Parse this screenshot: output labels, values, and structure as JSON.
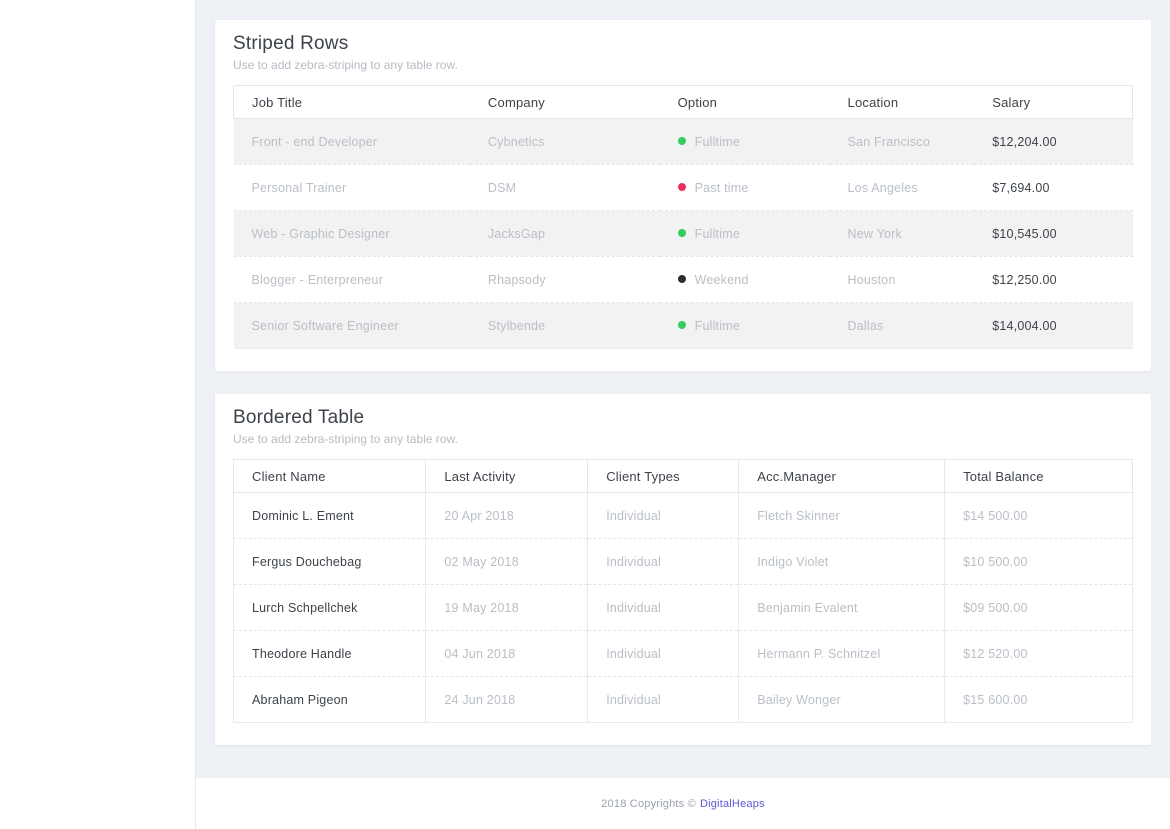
{
  "page": {
    "background_color": "#eef1f5",
    "card_color": "#ffffff"
  },
  "striped_section": {
    "title": "Striped Rows",
    "subtitle": "Use to add zebra-striping to any table row.",
    "columns": [
      "Job Title",
      "Company",
      "Option",
      "Location",
      "Salary"
    ],
    "rows": [
      {
        "job_title": "Front - end Developer",
        "company": "Cybnetics",
        "option": "Fulltime",
        "option_color": "#35cb5f",
        "location": "San Francisco",
        "salary": "$12,204.00"
      },
      {
        "job_title": "Personal Trainer",
        "company": "DSM",
        "option": "Past time",
        "option_color": "#ed2f5d",
        "location": "Los Angeles",
        "salary": "$7,694.00"
      },
      {
        "job_title": "Web - Graphic Designer",
        "company": "JacksGap",
        "option": "Fulltime",
        "option_color": "#35cb5f",
        "location": "New York",
        "salary": "$10,545.00"
      },
      {
        "job_title": "Blogger - Enterpreneur",
        "company": "Rhapsody",
        "option": "Weekend",
        "option_color": "#2b2e35",
        "location": "Houston",
        "salary": "$12,250.00"
      },
      {
        "job_title": "Senior Software Engineer",
        "company": "Stylbende",
        "option": "Fulltime",
        "option_color": "#35cb5f",
        "location": "Dallas",
        "salary": "$14,004.00"
      }
    ]
  },
  "bordered_section": {
    "title": "Bordered Table",
    "subtitle": "Use to add zebra-striping to any table row.",
    "columns": [
      "Client Name",
      "Last Activity",
      "Client Types",
      "Acc.Manager",
      "Total Balance"
    ],
    "rows": [
      {
        "client_name": "Dominic L. Ement",
        "last_activity": "20 Apr 2018",
        "client_type": "Individual",
        "acc_manager": "Fletch Skinner",
        "total_balance": "$14 500.00"
      },
      {
        "client_name": "Fergus Douchebag",
        "last_activity": "02 May 2018",
        "client_type": "Individual",
        "acc_manager": "Indigo Violet",
        "total_balance": "$10 500.00"
      },
      {
        "client_name": "Lurch Schpellchek",
        "last_activity": "19 May 2018",
        "client_type": "Individual",
        "acc_manager": "Benjamin Evalent",
        "total_balance": "$09 500.00"
      },
      {
        "client_name": "Theodore Handle",
        "last_activity": "04 Jun 2018",
        "client_type": "Individual",
        "acc_manager": "Hermann P. Schnitzel",
        "total_balance": "$12 520.00"
      },
      {
        "client_name": "Abraham Pigeon",
        "last_activity": "24 Jun 2018",
        "client_type": "Individual",
        "acc_manager": "Bailey Wonger",
        "total_balance": "$15 600.00"
      }
    ]
  },
  "status_colors": {
    "fulltime": "#35cb5f",
    "past_time": "#ed2f5d",
    "weekend": "#2b2e35"
  },
  "footer": {
    "text": "2018 Copyrights ©",
    "link_label": "DigitalHeaps",
    "link_color": "#5f57d8"
  }
}
